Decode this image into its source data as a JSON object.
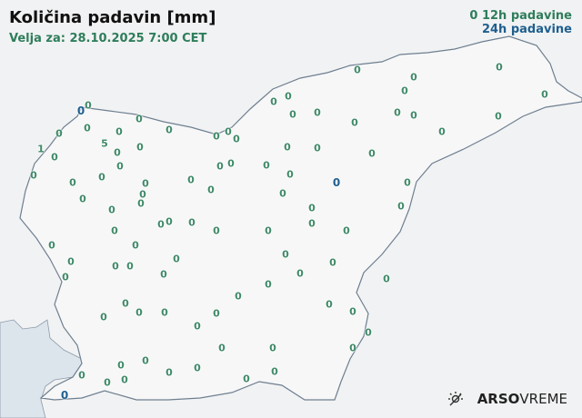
{
  "header": {
    "title": "Količina padavin [mm]",
    "valid_for": "Velja za: 28.10.2025 7:00 CET"
  },
  "legend": {
    "marker": "0",
    "label_12h": "12h padavine",
    "label_24h": "24h padavine"
  },
  "colors": {
    "precip_12h": "#3f8a68",
    "precip_24h": "#1f5f8f",
    "sea": "#dde5ec",
    "border": "#6e7f90"
  },
  "stations": [
    {
      "value": "0",
      "type": "12h"
    },
    {
      "value": "0",
      "type": "24h"
    },
    {
      "value": "0",
      "type": "12h"
    },
    {
      "value": "0",
      "type": "12h"
    },
    {
      "value": "0",
      "type": "12h"
    },
    {
      "value": "0",
      "type": "12h"
    },
    {
      "value": "5",
      "type": "12h"
    },
    {
      "value": "1",
      "type": "12h"
    },
    {
      "value": "0",
      "type": "12h"
    },
    {
      "value": "0",
      "type": "12h"
    },
    {
      "value": "0",
      "type": "12h"
    },
    {
      "value": "0",
      "type": "12h"
    },
    {
      "value": "0",
      "type": "12h"
    },
    {
      "value": "0",
      "type": "12h"
    },
    {
      "value": "0",
      "type": "12h"
    },
    {
      "value": "0",
      "type": "12h"
    },
    {
      "value": "0",
      "type": "12h"
    },
    {
      "value": "0",
      "type": "12h"
    },
    {
      "value": "0",
      "type": "12h"
    },
    {
      "value": "0",
      "type": "12h"
    },
    {
      "value": "0",
      "type": "12h"
    },
    {
      "value": "0",
      "type": "12h"
    },
    {
      "value": "0",
      "type": "12h"
    },
    {
      "value": "0",
      "type": "12h"
    },
    {
      "value": "0",
      "type": "12h"
    },
    {
      "value": "0",
      "type": "12h"
    },
    {
      "value": "0",
      "type": "12h"
    },
    {
      "value": "0",
      "type": "12h"
    },
    {
      "value": "0",
      "type": "12h"
    },
    {
      "value": "0",
      "type": "12h"
    },
    {
      "value": "0",
      "type": "12h"
    },
    {
      "value": "0",
      "type": "12h"
    },
    {
      "value": "0",
      "type": "12h"
    },
    {
      "value": "0",
      "type": "12h"
    },
    {
      "value": "0",
      "type": "12h"
    },
    {
      "value": "0",
      "type": "24h"
    },
    {
      "value": "0",
      "type": "12h"
    },
    {
      "value": "0",
      "type": "12h"
    },
    {
      "value": "0",
      "type": "12h"
    },
    {
      "value": "0",
      "type": "12h"
    },
    {
      "value": "0",
      "type": "12h"
    },
    {
      "value": "0",
      "type": "12h"
    },
    {
      "value": "0",
      "type": "12h"
    },
    {
      "value": "0",
      "type": "12h"
    },
    {
      "value": "0",
      "type": "12h"
    },
    {
      "value": "0",
      "type": "12h"
    },
    {
      "value": "0",
      "type": "12h"
    },
    {
      "value": "0",
      "type": "12h"
    },
    {
      "value": "0",
      "type": "12h"
    },
    {
      "value": "0",
      "type": "12h"
    },
    {
      "value": "0",
      "type": "12h"
    },
    {
      "value": "0",
      "type": "12h"
    },
    {
      "value": "0",
      "type": "12h"
    },
    {
      "value": "0",
      "type": "12h"
    },
    {
      "value": "0",
      "type": "12h"
    },
    {
      "value": "0",
      "type": "12h"
    },
    {
      "value": "0",
      "type": "12h"
    },
    {
      "value": "0",
      "type": "12h"
    },
    {
      "value": "0",
      "type": "12h"
    },
    {
      "value": "0",
      "type": "12h"
    },
    {
      "value": "0",
      "type": "12h"
    },
    {
      "value": "0",
      "type": "12h"
    },
    {
      "value": "0",
      "type": "12h"
    },
    {
      "value": "0",
      "type": "12h"
    },
    {
      "value": "0",
      "type": "12h"
    },
    {
      "value": "0",
      "type": "12h"
    },
    {
      "value": "0",
      "type": "12h"
    },
    {
      "value": "0",
      "type": "12h"
    },
    {
      "value": "0",
      "type": "12h"
    },
    {
      "value": "0",
      "type": "12h"
    },
    {
      "value": "0",
      "type": "12h"
    },
    {
      "value": "0",
      "type": "12h"
    },
    {
      "value": "0",
      "type": "12h"
    },
    {
      "value": "0",
      "type": "12h"
    },
    {
      "value": "0",
      "type": "12h"
    },
    {
      "value": "0",
      "type": "12h"
    },
    {
      "value": "0",
      "type": "12h"
    },
    {
      "value": "0",
      "type": "12h"
    },
    {
      "value": "0",
      "type": "12h"
    },
    {
      "value": "0",
      "type": "12h"
    },
    {
      "value": "0",
      "type": "12h"
    },
    {
      "value": "0",
      "type": "12h"
    },
    {
      "value": "0",
      "type": "12h"
    },
    {
      "value": "0",
      "type": "12h"
    },
    {
      "value": "0",
      "type": "12h"
    },
    {
      "value": "0",
      "type": "12h"
    },
    {
      "value": "0",
      "type": "12h"
    },
    {
      "value": "0",
      "type": "12h"
    },
    {
      "value": "0",
      "type": "12h"
    },
    {
      "value": "0",
      "type": "12h"
    },
    {
      "value": "0",
      "type": "12h"
    },
    {
      "value": "0",
      "type": "12h"
    },
    {
      "value": "0",
      "type": "12h"
    },
    {
      "value": "0",
      "type": "12h"
    },
    {
      "value": "0",
      "type": "12h"
    },
    {
      "value": "0",
      "type": "24h"
    }
  ],
  "logo": {
    "brand": "ARSO",
    "product": "VREME",
    "icon": "sun-weather-icon"
  }
}
